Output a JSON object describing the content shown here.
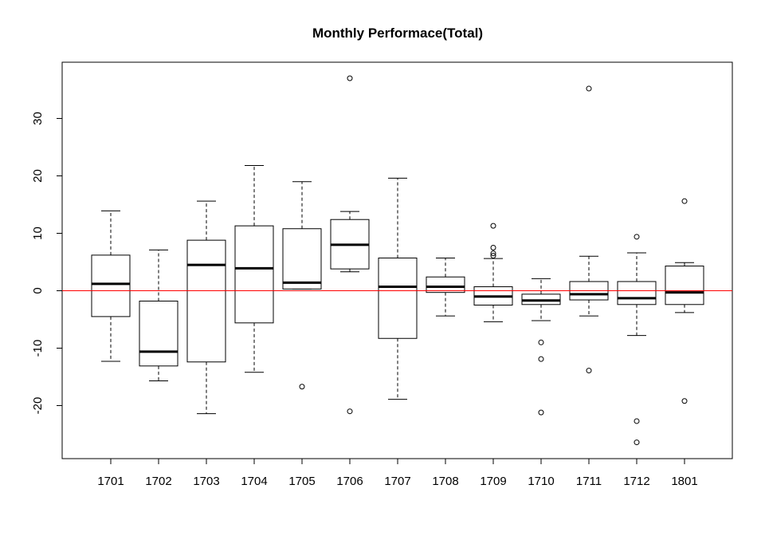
{
  "chart_data": {
    "type": "boxplot",
    "title": "Monthly Performace(Total)",
    "xlabel": "",
    "ylabel": "",
    "ylim": [
      -29,
      39
    ],
    "yticks": [
      -20,
      -10,
      0,
      10,
      20,
      30
    ],
    "reference_line": {
      "y": 0,
      "color": "#ff0000"
    },
    "categories": [
      "1701",
      "1702",
      "1703",
      "1704",
      "1705",
      "1706",
      "1707",
      "1708",
      "1709",
      "1710",
      "1711",
      "1712",
      "1801"
    ],
    "boxes": [
      {
        "category": "1701",
        "whisker_low": -12.3,
        "q1": -4.5,
        "median": 1.2,
        "q3": 6.2,
        "whisker_high": 13.9,
        "outliers": []
      },
      {
        "category": "1702",
        "whisker_low": -15.7,
        "q1": -13.1,
        "median": -10.6,
        "q3": -1.8,
        "whisker_high": 7.1,
        "outliers": []
      },
      {
        "category": "1703",
        "whisker_low": -21.4,
        "q1": -12.4,
        "median": 4.5,
        "q3": 8.8,
        "whisker_high": 15.6,
        "outliers": []
      },
      {
        "category": "1704",
        "whisker_low": -14.2,
        "q1": -5.6,
        "median": 3.9,
        "q3": 11.3,
        "whisker_high": 21.8,
        "outliers": []
      },
      {
        "category": "1705",
        "whisker_low": 0.3,
        "q1": 0.3,
        "median": 1.4,
        "q3": 10.8,
        "whisker_high": 19.0,
        "outliers": [
          -16.7
        ]
      },
      {
        "category": "1706",
        "whisker_low": 3.3,
        "q1": 3.8,
        "median": 8.0,
        "q3": 12.4,
        "whisker_high": 13.8,
        "outliers": [
          37.0,
          -21.0
        ]
      },
      {
        "category": "1707",
        "whisker_low": -18.9,
        "q1": -8.3,
        "median": 0.7,
        "q3": 5.7,
        "whisker_high": 19.6,
        "outliers": []
      },
      {
        "category": "1708",
        "whisker_low": -4.4,
        "q1": -0.3,
        "median": 0.7,
        "q3": 2.4,
        "whisker_high": 5.7,
        "outliers": []
      },
      {
        "category": "1709",
        "whisker_low": -5.4,
        "q1": -2.5,
        "median": -1.0,
        "q3": 0.7,
        "whisker_high": 5.6,
        "outliers": [
          11.3,
          7.5,
          6.5,
          6.1
        ]
      },
      {
        "category": "1710",
        "whisker_low": -5.2,
        "q1": -2.4,
        "median": -1.7,
        "q3": -0.6,
        "whisker_high": 2.1,
        "outliers": [
          -9.0,
          -11.9,
          -21.2
        ]
      },
      {
        "category": "1711",
        "whisker_low": -4.4,
        "q1": -1.6,
        "median": -0.6,
        "q3": 1.6,
        "whisker_high": 6.0,
        "outliers": [
          35.2,
          -13.9
        ]
      },
      {
        "category": "1712",
        "whisker_low": -7.8,
        "q1": -2.4,
        "median": -1.3,
        "q3": 1.6,
        "whisker_high": 6.6,
        "outliers": [
          9.4,
          -22.7,
          -26.4
        ]
      },
      {
        "category": "1801",
        "whisker_low": -3.8,
        "q1": -2.4,
        "median": -0.3,
        "q3": 4.3,
        "whisker_high": 4.9,
        "outliers": [
          15.6,
          -19.2
        ]
      }
    ],
    "grid": false,
    "legend": "none"
  }
}
